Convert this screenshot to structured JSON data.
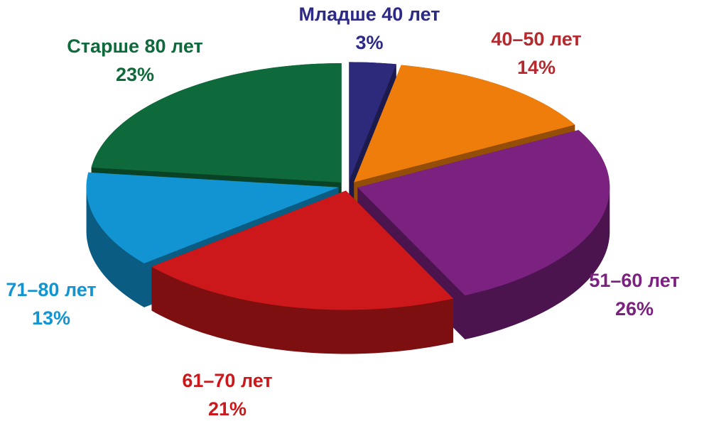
{
  "chart_data": {
    "type": "pie3d",
    "categories": [
      "Младше 40 лет",
      "40–50 лет",
      "51–60 лет",
      "61–70 лет",
      "71–80 лет",
      "Старше 80 лет"
    ],
    "values": [
      3,
      14,
      26,
      21,
      13,
      23
    ],
    "value_labels": [
      "3%",
      "14%",
      "26%",
      "21%",
      "13%",
      "23%"
    ],
    "colors": [
      "#2d2a7c",
      "#ee7d0b",
      "#7b217f",
      "#cc181b",
      "#1294d2",
      "#0e6a3a"
    ],
    "label_colors": [
      "#2d2a86",
      "#b52a2f",
      "#7b217f",
      "#cc181b",
      "#1294d2",
      "#0e6a3a"
    ]
  }
}
